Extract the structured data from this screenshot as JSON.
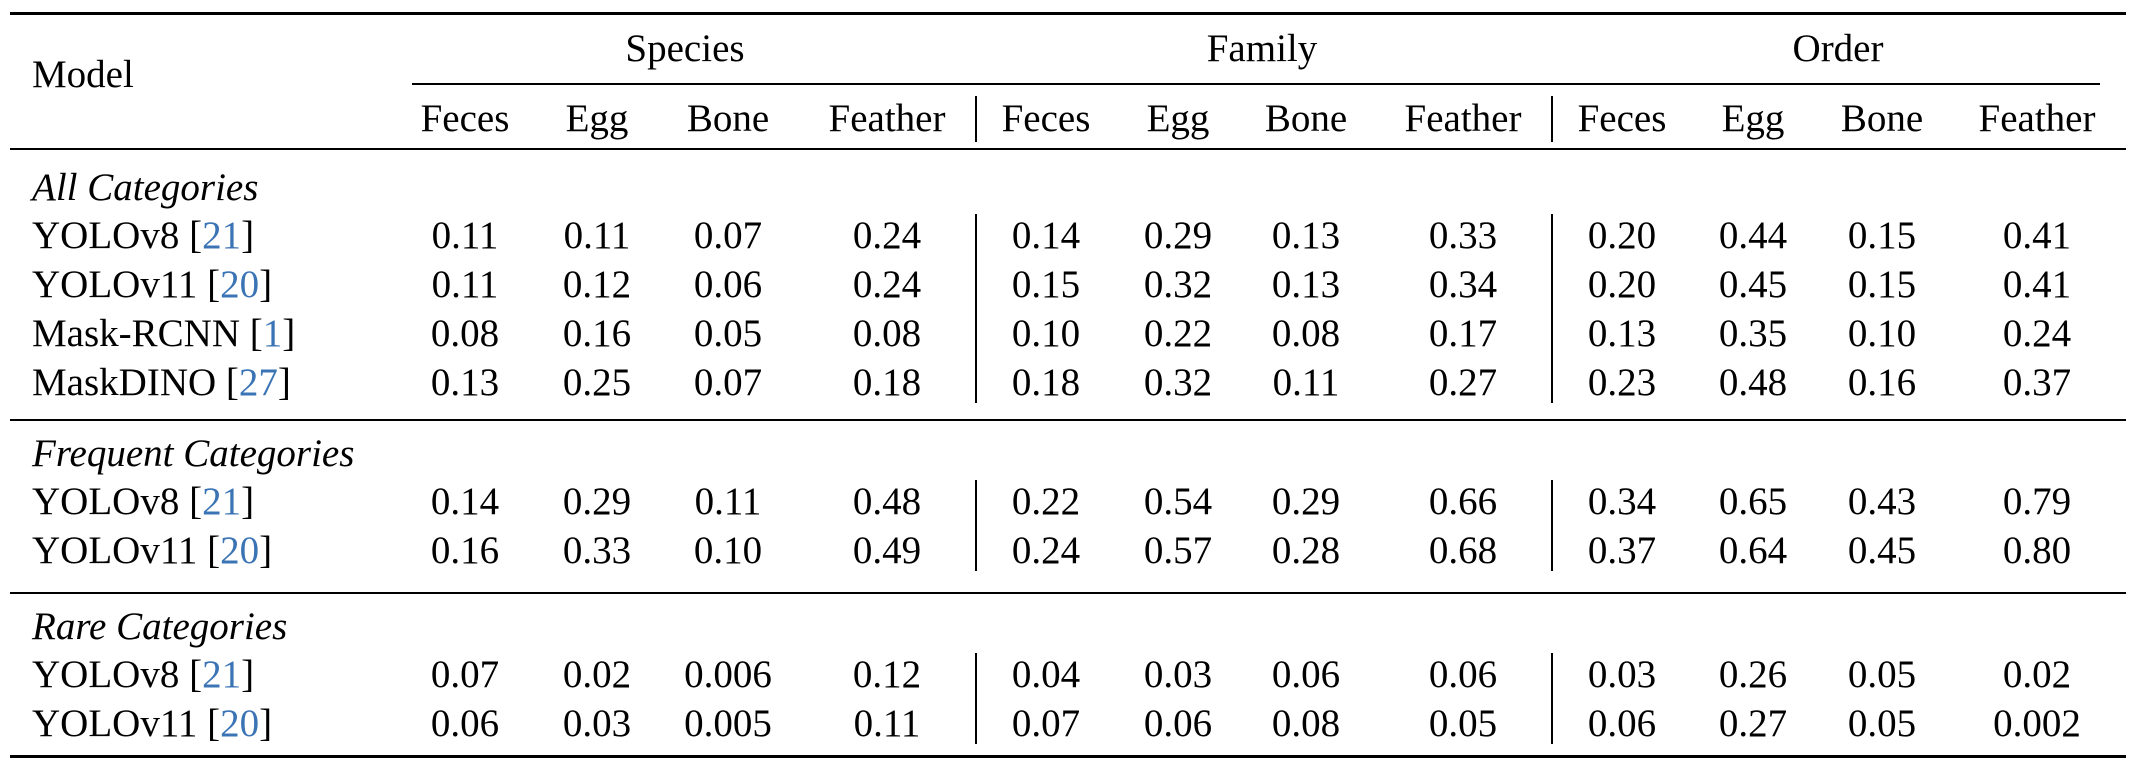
{
  "table": {
    "model_header": "Model",
    "groups": [
      "Species",
      "Family",
      "Order"
    ],
    "subcolumns": [
      "Feces",
      "Egg",
      "Bone",
      "Feather"
    ],
    "sections": [
      {
        "title": "All Categories",
        "rows": [
          {
            "model": "YOLOv8",
            "ref": "21",
            "values": [
              "0.11",
              "0.11",
              "0.07",
              "0.24",
              "0.14",
              "0.29",
              "0.13",
              "0.33",
              "0.20",
              "0.44",
              "0.15",
              "0.41"
            ]
          },
          {
            "model": "YOLOv11",
            "ref": "20",
            "values": [
              "0.11",
              "0.12",
              "0.06",
              "0.24",
              "0.15",
              "0.32",
              "0.13",
              "0.34",
              "0.20",
              "0.45",
              "0.15",
              "0.41"
            ]
          },
          {
            "model": "Mask-RCNN",
            "ref": "1",
            "values": [
              "0.08",
              "0.16",
              "0.05",
              "0.08",
              "0.10",
              "0.22",
              "0.08",
              "0.17",
              "0.13",
              "0.35",
              "0.10",
              "0.24"
            ]
          },
          {
            "model": "MaskDINO",
            "ref": "27",
            "values": [
              "0.13",
              "0.25",
              "0.07",
              "0.18",
              "0.18",
              "0.32",
              "0.11",
              "0.27",
              "0.23",
              "0.48",
              "0.16",
              "0.37"
            ]
          }
        ]
      },
      {
        "title": "Frequent Categories",
        "rows": [
          {
            "model": "YOLOv8",
            "ref": "21",
            "values": [
              "0.14",
              "0.29",
              "0.11",
              "0.48",
              "0.22",
              "0.54",
              "0.29",
              "0.66",
              "0.34",
              "0.65",
              "0.43",
              "0.79"
            ]
          },
          {
            "model": "YOLOv11",
            "ref": "20",
            "values": [
              "0.16",
              "0.33",
              "0.10",
              "0.49",
              "0.24",
              "0.57",
              "0.28",
              "0.68",
              "0.37",
              "0.64",
              "0.45",
              "0.80"
            ]
          }
        ]
      },
      {
        "title": "Rare Categories",
        "rows": [
          {
            "model": "YOLOv8",
            "ref": "21",
            "values": [
              "0.07",
              "0.02",
              "0.006",
              "0.12",
              "0.04",
              "0.03",
              "0.06",
              "0.06",
              "0.03",
              "0.26",
              "0.05",
              "0.02"
            ]
          },
          {
            "model": "YOLOv11",
            "ref": "20",
            "values": [
              "0.06",
              "0.03",
              "0.005",
              "0.11",
              "0.07",
              "0.06",
              "0.08",
              "0.05",
              "0.06",
              "0.27",
              "0.05",
              "0.002"
            ]
          }
        ]
      }
    ]
  }
}
